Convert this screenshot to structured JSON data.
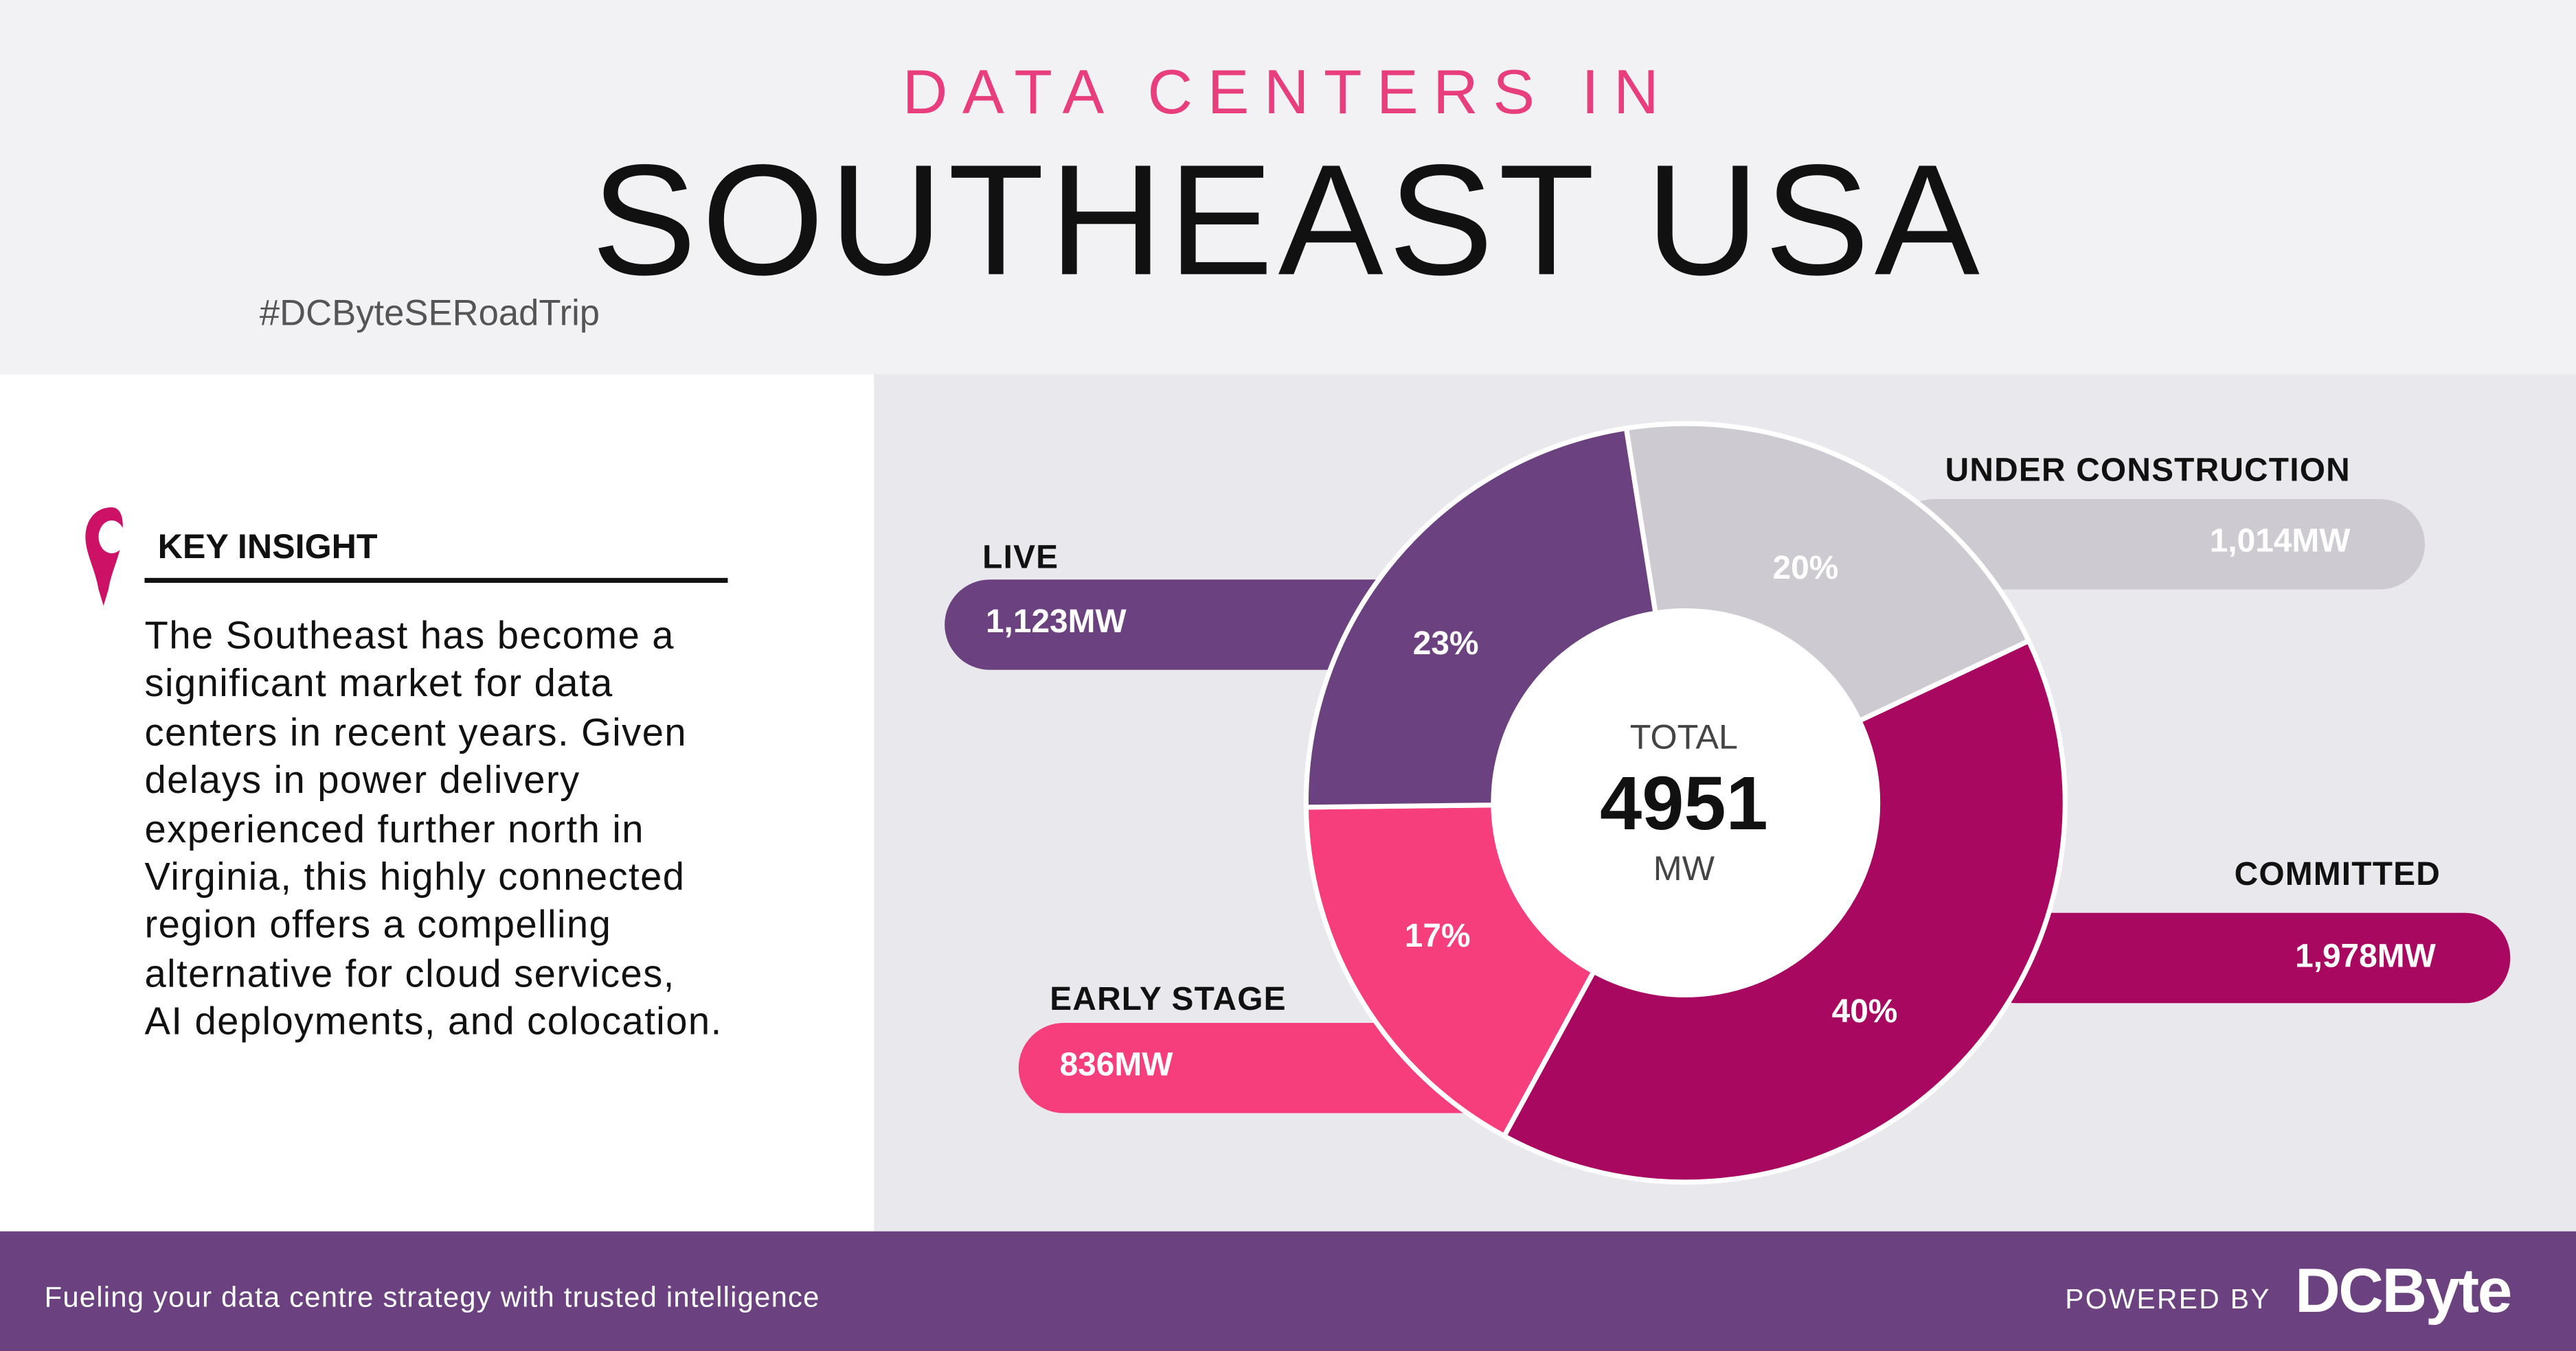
{
  "header": {
    "kicker": "DATA CENTERS IN",
    "title": "SOUTHEAST USA",
    "hashtag": "#DCByteSERoadTrip"
  },
  "insight": {
    "icon": "map-pin-icon",
    "heading": "KEY INSIGHT",
    "lines": [
      "The Southeast has become a",
      "significant market for data",
      "centers in recent years. Given",
      "delays in power delivery",
      "experienced further north in",
      "Virginia, this highly connected",
      "region offers a compelling",
      "alternative for cloud services,",
      "AI deployments, and colocation."
    ]
  },
  "chart_data": {
    "type": "pie",
    "donut": true,
    "center": {
      "label": "TOTAL",
      "value": "4951",
      "unit": "MW"
    },
    "slices": [
      {
        "name": "UNDER CONSTRUCTION",
        "value_mw": 1014,
        "value_label": "1,014MW",
        "percent_label": "20%",
        "color": "#cdcbd1"
      },
      {
        "name": "COMMITTED",
        "value_mw": 1978,
        "value_label": "1,978MW",
        "percent_label": "40%",
        "color": "#a8085f"
      },
      {
        "name": "EARLY STAGE",
        "value_mw": 836,
        "value_label": "836MW",
        "percent_label": "17%",
        "color": "#f53e7b"
      },
      {
        "name": "LIVE",
        "value_mw": 1123,
        "value_label": "1,123MW",
        "percent_label": "23%",
        "color": "#6b417f"
      }
    ]
  },
  "footer": {
    "tagline": "Fueling your data centre strategy with trusted intelligence",
    "powered_by": "POWERED BY",
    "logo": "DCByte"
  },
  "colors": {
    "accent": "#e83e7d",
    "footer": "#6b4180"
  }
}
